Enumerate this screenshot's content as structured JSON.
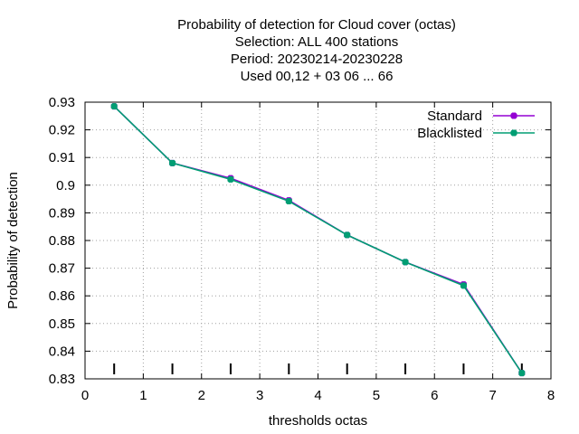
{
  "chart_data": {
    "type": "line",
    "title_lines": [
      "Probability of detection  for Cloud cover (octas)",
      "Selection: ALL     400 stations",
      "Period: 20230214-20230228",
      "Used  00,12  + 03 06 ... 66"
    ],
    "xlabel": "thresholds octas",
    "ylabel": "Probability of detection",
    "xlim": [
      0,
      8
    ],
    "ylim": [
      0.83,
      0.93
    ],
    "xticks": [
      0,
      1,
      2,
      3,
      4,
      5,
      6,
      7,
      8
    ],
    "yticks": [
      0.83,
      0.84,
      0.85,
      0.86,
      0.87,
      0.88,
      0.89,
      0.9,
      0.91,
      0.92,
      0.93
    ],
    "xtick_labels": [
      "0",
      "1",
      "2",
      "3",
      "4",
      "5",
      "6",
      "7",
      "8"
    ],
    "ytick_labels": [
      "0.83",
      "0.84",
      "0.85",
      "0.86",
      "0.87",
      "0.88",
      "0.89",
      "0.9",
      "0.91",
      "0.92",
      "0.93"
    ],
    "grid": true,
    "legend_position": "top-right",
    "x": [
      0.5,
      1.5,
      2.5,
      3.5,
      4.5,
      5.5,
      6.5,
      7.5
    ],
    "sample_marks_x": [
      0.5,
      1.5,
      2.5,
      3.5,
      4.5,
      5.5,
      6.5,
      7.5
    ],
    "series": [
      {
        "name": "Standard",
        "color": "#9400d3",
        "values": [
          0.9285,
          0.908,
          0.9025,
          0.8945,
          0.882,
          0.8722,
          0.8641,
          0.8321
        ]
      },
      {
        "name": "Blacklisted",
        "color": "#009e73",
        "values": [
          0.9285,
          0.908,
          0.9021,
          0.8942,
          0.882,
          0.8722,
          0.8637,
          0.8321
        ]
      }
    ]
  }
}
